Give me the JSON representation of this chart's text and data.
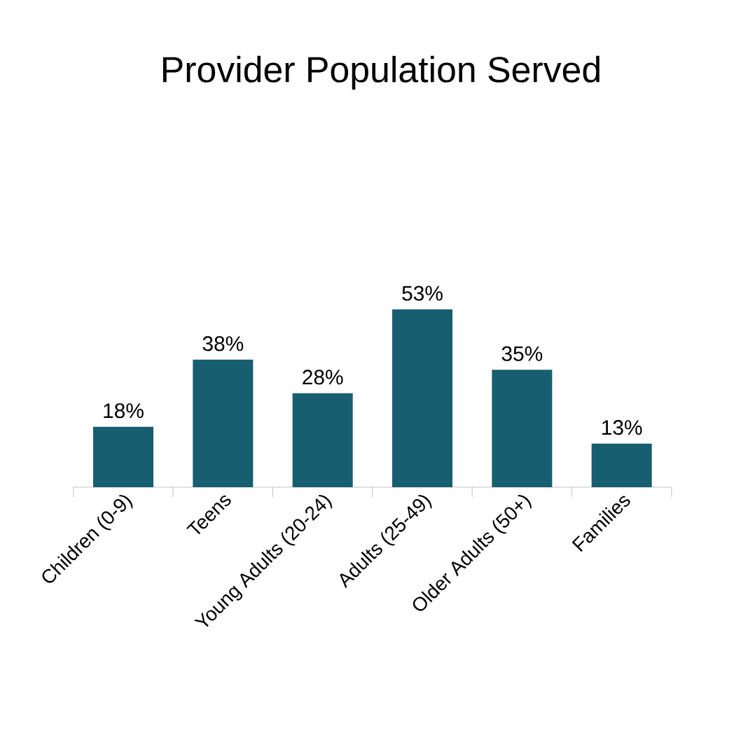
{
  "chart_data": {
    "type": "bar",
    "title": "Provider Population Served",
    "categories": [
      "Children (0-9)",
      "Teens",
      "Young Adults (20-24)",
      "Adults (25-49)",
      "Older Adults (50+)",
      "Families"
    ],
    "values": [
      18,
      38,
      28,
      53,
      35,
      13
    ],
    "value_labels": [
      "18%",
      "38%",
      "28%",
      "53%",
      "35%",
      "13%"
    ],
    "color": "#175e70"
  }
}
